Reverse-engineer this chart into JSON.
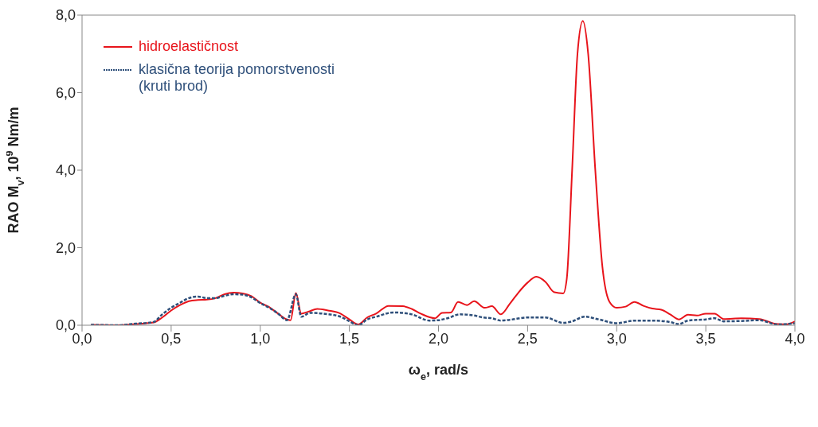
{
  "chart_data": {
    "type": "line",
    "xlabel": "ω$_{e}$, rad/s",
    "ylabel": "RAO M$_{v}$, 10$^{9}$ Nm/m",
    "xlim": [
      0,
      4
    ],
    "ylim": [
      0,
      8
    ],
    "xticks": [
      {
        "value": 0,
        "label": "0,0"
      },
      {
        "value": 0.5,
        "label": "0,5"
      },
      {
        "value": 1,
        "label": "1,0"
      },
      {
        "value": 1.5,
        "label": "1,5"
      },
      {
        "value": 2,
        "label": "2,0"
      },
      {
        "value": 2.5,
        "label": "2,5"
      },
      {
        "value": 3,
        "label": "3,0"
      },
      {
        "value": 3.5,
        "label": "3,5"
      },
      {
        "value": 4,
        "label": "4,0"
      }
    ],
    "yticks": [
      {
        "value": 0,
        "label": "0,0"
      },
      {
        "value": 2,
        "label": "2,0"
      },
      {
        "value": 4,
        "label": "4,0"
      },
      {
        "value": 6,
        "label": "6,0"
      },
      {
        "value": 8,
        "label": "8,0"
      }
    ],
    "grid": false,
    "legend": "top left",
    "marker": "none",
    "series": [
      {
        "name": "hidroelastičnost",
        "color": "#e8141b",
        "line_style": "solid",
        "x": [
          0.05,
          0.2,
          0.3,
          0.4,
          0.45,
          0.5,
          0.55,
          0.6,
          0.65,
          0.7,
          0.75,
          0.8,
          0.85,
          0.9,
          0.95,
          1.0,
          1.05,
          1.1,
          1.15,
          1.17,
          1.2,
          1.23,
          1.27,
          1.32,
          1.38,
          1.45,
          1.5,
          1.55,
          1.6,
          1.65,
          1.72,
          1.8,
          1.85,
          1.9,
          1.98,
          2.02,
          2.07,
          2.11,
          2.16,
          2.2,
          2.26,
          2.3,
          2.35,
          2.4,
          2.45,
          2.5,
          2.55,
          2.6,
          2.65,
          2.7,
          2.72,
          2.75,
          2.78,
          2.81,
          2.84,
          2.88,
          2.92,
          2.96,
          3.0,
          3.05,
          3.1,
          3.15,
          3.2,
          3.25,
          3.3,
          3.35,
          3.4,
          3.45,
          3.5,
          3.55,
          3.6,
          3.7,
          3.8,
          3.9,
          3.95,
          4.0
        ],
        "values": [
          0.01,
          0.0,
          0.03,
          0.07,
          0.2,
          0.38,
          0.52,
          0.62,
          0.65,
          0.66,
          0.7,
          0.8,
          0.84,
          0.82,
          0.75,
          0.58,
          0.47,
          0.3,
          0.15,
          0.13,
          0.83,
          0.3,
          0.35,
          0.42,
          0.38,
          0.3,
          0.15,
          0.02,
          0.2,
          0.3,
          0.5,
          0.49,
          0.42,
          0.3,
          0.18,
          0.32,
          0.33,
          0.6,
          0.52,
          0.62,
          0.45,
          0.49,
          0.28,
          0.55,
          0.85,
          1.1,
          1.25,
          1.12,
          0.85,
          0.82,
          1.2,
          4.0,
          7.0,
          7.85,
          7.0,
          4.0,
          1.5,
          0.6,
          0.45,
          0.48,
          0.6,
          0.5,
          0.43,
          0.4,
          0.28,
          0.15,
          0.27,
          0.25,
          0.3,
          0.3,
          0.16,
          0.18,
          0.16,
          0.03,
          0.02,
          0.1
        ]
      },
      {
        "name": "klasična teorija pomorstvenosti (kruti brod)",
        "color": "#2e4f7a",
        "line_style": "dashed",
        "x": [
          0.05,
          0.2,
          0.3,
          0.4,
          0.45,
          0.5,
          0.55,
          0.6,
          0.65,
          0.7,
          0.75,
          0.8,
          0.85,
          0.9,
          0.95,
          1.0,
          1.05,
          1.1,
          1.15,
          1.2,
          1.23,
          1.28,
          1.35,
          1.45,
          1.5,
          1.55,
          1.6,
          1.65,
          1.75,
          1.85,
          1.95,
          2.0,
          2.05,
          2.12,
          2.2,
          2.25,
          2.3,
          2.35,
          2.4,
          2.5,
          2.6,
          2.7,
          2.75,
          2.82,
          2.9,
          3.0,
          3.1,
          3.2,
          3.3,
          3.35,
          3.4,
          3.5,
          3.55,
          3.6,
          3.7,
          3.8,
          3.9,
          4.0
        ],
        "values": [
          0.01,
          0.0,
          0.04,
          0.08,
          0.28,
          0.45,
          0.58,
          0.7,
          0.74,
          0.7,
          0.7,
          0.76,
          0.8,
          0.79,
          0.72,
          0.57,
          0.45,
          0.3,
          0.13,
          0.8,
          0.22,
          0.32,
          0.3,
          0.22,
          0.1,
          0.0,
          0.15,
          0.22,
          0.33,
          0.28,
          0.12,
          0.13,
          0.18,
          0.28,
          0.25,
          0.2,
          0.18,
          0.12,
          0.14,
          0.2,
          0.2,
          0.06,
          0.1,
          0.22,
          0.15,
          0.05,
          0.12,
          0.12,
          0.08,
          0.03,
          0.12,
          0.15,
          0.18,
          0.1,
          0.11,
          0.13,
          0.02,
          0.05
        ]
      }
    ]
  }
}
